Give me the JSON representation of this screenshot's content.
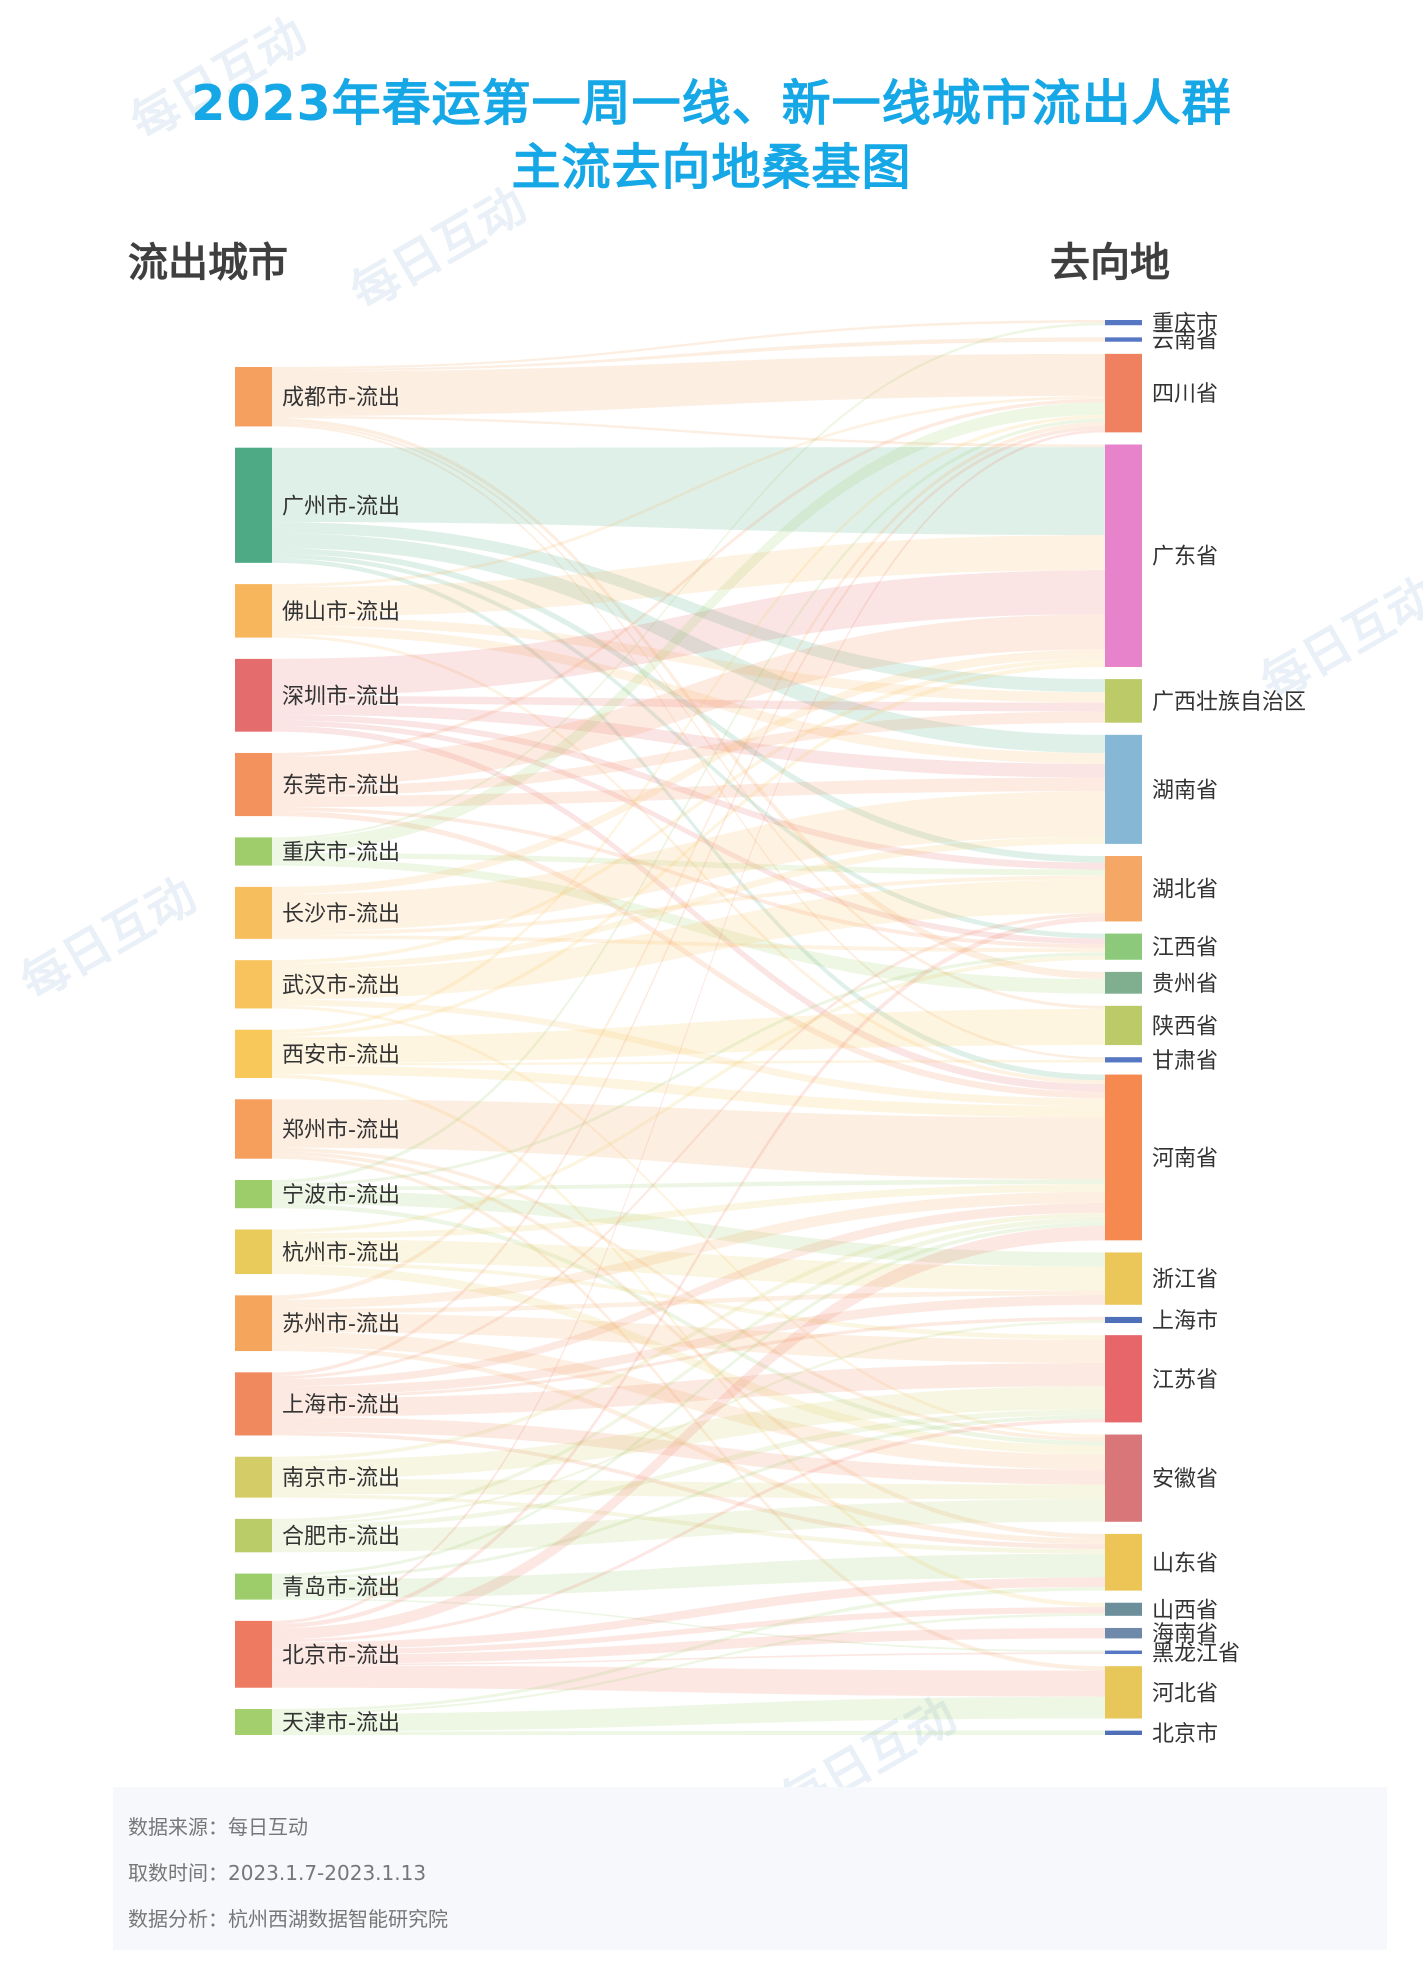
{
  "title_line1": "2023年春运第一周一线、新一线城市流出人群",
  "title_line2": "主流去向地桑基图",
  "left_header": "流出城市",
  "right_header": "去向地",
  "footer": {
    "source": "数据来源：每日互动",
    "period": "取数时间：2023.1.7-2023.1.13",
    "analysis": "数据分析：杭州西湖数据智能研究院"
  },
  "watermark_text": "每日互动",
  "chart_data": {
    "type": "sankey",
    "title": "2023年春运第一周一线、新一线城市流出人群主流去向地桑基图",
    "sources": [
      {
        "name": "成都市-流出",
        "value": 8.0,
        "color": "#f5a05f"
      },
      {
        "name": "广州市-流出",
        "value": 15.5,
        "color": "#4daa84"
      },
      {
        "name": "佛山市-流出",
        "value": 7.2,
        "color": "#f7b65c"
      },
      {
        "name": "深圳市-流出",
        "value": 9.8,
        "color": "#e56c6c"
      },
      {
        "name": "东莞市-流出",
        "value": 8.5,
        "color": "#f3925c"
      },
      {
        "name": "重庆市-流出",
        "value": 3.8,
        "color": "#a0cd6c"
      },
      {
        "name": "长沙市-流出",
        "value": 7.0,
        "color": "#f7be5e"
      },
      {
        "name": "武汉市-流出",
        "value": 6.5,
        "color": "#f8c25c"
      },
      {
        "name": "西安市-流出",
        "value": 6.5,
        "color": "#f9c85a"
      },
      {
        "name": "郑州市-流出",
        "value": 8.0,
        "color": "#f69e5c"
      },
      {
        "name": "宁波市-流出",
        "value": 3.8,
        "color": "#9ccd6a"
      },
      {
        "name": "杭州市-流出",
        "value": 6.0,
        "color": "#e9cb5c"
      },
      {
        "name": "苏州市-流出",
        "value": 7.5,
        "color": "#f6a65c"
      },
      {
        "name": "上海市-流出",
        "value": 8.5,
        "color": "#f1895f"
      },
      {
        "name": "南京市-流出",
        "value": 5.5,
        "color": "#d4cc66"
      },
      {
        "name": "合肥市-流出",
        "value": 4.5,
        "color": "#b9cc68"
      },
      {
        "name": "青岛市-流出",
        "value": 3.5,
        "color": "#9ccd6a"
      },
      {
        "name": "北京市-流出",
        "value": 9.0,
        "color": "#ee7a62"
      },
      {
        "name": "天津市-流出",
        "value": 3.5,
        "color": "#a3d06c"
      }
    ],
    "targets": [
      {
        "name": "重庆市",
        "value": 0.6,
        "color": "#5677c4"
      },
      {
        "name": "云南省",
        "value": 0.5,
        "color": "#5677c4"
      },
      {
        "name": "四川省",
        "value": 9.0,
        "color": "#ef8060"
      },
      {
        "name": "广东省",
        "value": 25.5,
        "color": "#e683cb"
      },
      {
        "name": "广西壮族自治区",
        "value": 5.0,
        "color": "#bcca68"
      },
      {
        "name": "湖南省",
        "value": 12.5,
        "color": "#86b7d4"
      },
      {
        "name": "湖北省",
        "value": 7.5,
        "color": "#f5a866"
      },
      {
        "name": "江西省",
        "value": 3.0,
        "color": "#8cc97a"
      },
      {
        "name": "贵州省",
        "value": 2.5,
        "color": "#7faf8f"
      },
      {
        "name": "陕西省",
        "value": 4.5,
        "color": "#bcca68"
      },
      {
        "name": "甘肃省",
        "value": 0.6,
        "color": "#5677c4"
      },
      {
        "name": "河南省",
        "value": 19.0,
        "color": "#f6894f"
      },
      {
        "name": "浙江省",
        "value": 6.0,
        "color": "#eac758"
      },
      {
        "name": "上海市",
        "value": 0.7,
        "color": "#4f6fb8"
      },
      {
        "name": "江苏省",
        "value": 10.0,
        "color": "#e6666a"
      },
      {
        "name": "安徽省",
        "value": 10.0,
        "color": "#d8767a"
      },
      {
        "name": "山东省",
        "value": 6.5,
        "color": "#edc456"
      },
      {
        "name": "山西省",
        "value": 1.5,
        "color": "#6d8f9c"
      },
      {
        "name": "海南省",
        "value": 1.2,
        "color": "#6e89aa"
      },
      {
        "name": "黑龙江省",
        "value": 0.4,
        "color": "#5677c4"
      },
      {
        "name": "河北省",
        "value": 6.0,
        "color": "#e7c75a"
      },
      {
        "name": "北京市",
        "value": 0.5,
        "color": "#4f6fb8"
      }
    ],
    "links": [
      {
        "source": "成都市-流出",
        "target": "重庆市",
        "value": 0.3
      },
      {
        "source": "成都市-流出",
        "target": "云南省",
        "value": 0.3
      },
      {
        "source": "成都市-流出",
        "target": "四川省",
        "value": 6.0
      },
      {
        "source": "成都市-流出",
        "target": "广东省",
        "value": 0.3
      },
      {
        "source": "成都市-流出",
        "target": "贵州省",
        "value": 0.5
      },
      {
        "source": "成都市-流出",
        "target": "陕西省",
        "value": 0.3
      },
      {
        "source": "成都市-流出",
        "target": "甘肃省",
        "value": 0.3
      },
      {
        "source": "广州市-流出",
        "target": "广东省",
        "value": 10.0
      },
      {
        "source": "广州市-流出",
        "target": "广西壮族自治区",
        "value": 1.5
      },
      {
        "source": "广州市-流出",
        "target": "湖南省",
        "value": 2.0
      },
      {
        "source": "广州市-流出",
        "target": "湖北省",
        "value": 0.8
      },
      {
        "source": "广州市-流出",
        "target": "江西省",
        "value": 0.6
      },
      {
        "source": "广州市-流出",
        "target": "河南省",
        "value": 0.6
      },
      {
        "source": "佛山市-流出",
        "target": "广东省",
        "value": 4.0
      },
      {
        "source": "佛山市-流出",
        "target": "广西壮族自治区",
        "value": 1.2
      },
      {
        "source": "佛山市-流出",
        "target": "湖南省",
        "value": 1.2
      },
      {
        "source": "佛山市-流出",
        "target": "四川省",
        "value": 0.4
      },
      {
        "source": "佛山市-流出",
        "target": "河南省",
        "value": 0.4
      },
      {
        "source": "深圳市-流出",
        "target": "广东省",
        "value": 5.0
      },
      {
        "source": "深圳市-流出",
        "target": "广西壮族自治区",
        "value": 1.0
      },
      {
        "source": "深圳市-流出",
        "target": "湖南省",
        "value": 1.5
      },
      {
        "source": "深圳市-流出",
        "target": "湖北省",
        "value": 0.8
      },
      {
        "source": "深圳市-流出",
        "target": "江西省",
        "value": 0.7
      },
      {
        "source": "深圳市-流出",
        "target": "河南省",
        "value": 0.8
      },
      {
        "source": "东莞市-流出",
        "target": "广东省",
        "value": 4.0
      },
      {
        "source": "东莞市-流出",
        "target": "广西壮族自治区",
        "value": 1.3
      },
      {
        "source": "东莞市-流出",
        "target": "湖南省",
        "value": 1.5
      },
      {
        "source": "东莞市-流出",
        "target": "四川省",
        "value": 0.5
      },
      {
        "source": "东莞市-流出",
        "target": "江西省",
        "value": 0.5
      },
      {
        "source": "东莞市-流出",
        "target": "河南省",
        "value": 0.7
      },
      {
        "source": "重庆市-流出",
        "target": "四川省",
        "value": 1.8
      },
      {
        "source": "重庆市-流出",
        "target": "重庆市",
        "value": 0.3
      },
      {
        "source": "重庆市-流出",
        "target": "贵州省",
        "value": 1.0
      },
      {
        "source": "重庆市-流出",
        "target": "湖北省",
        "value": 0.7
      },
      {
        "source": "长沙市-流出",
        "target": "湖南省",
        "value": 5.0
      },
      {
        "source": "长沙市-流出",
        "target": "广东省",
        "value": 1.0
      },
      {
        "source": "长沙市-流出",
        "target": "湖北省",
        "value": 0.5
      },
      {
        "source": "长沙市-流出",
        "target": "江西省",
        "value": 0.5
      },
      {
        "source": "武汉市-流出",
        "target": "湖北省",
        "value": 4.0
      },
      {
        "source": "武汉市-流出",
        "target": "河南省",
        "value": 0.8
      },
      {
        "source": "武汉市-流出",
        "target": "湖南省",
        "value": 0.8
      },
      {
        "source": "武汉市-流出",
        "target": "广东省",
        "value": 0.5
      },
      {
        "source": "武汉市-流出",
        "target": "安徽省",
        "value": 0.4
      },
      {
        "source": "西安市-流出",
        "target": "陕西省",
        "value": 3.5
      },
      {
        "source": "西安市-流出",
        "target": "河南省",
        "value": 1.2
      },
      {
        "source": "西安市-流出",
        "target": "甘肃省",
        "value": 0.3
      },
      {
        "source": "西安市-流出",
        "target": "四川省",
        "value": 0.5
      },
      {
        "source": "西安市-流出",
        "target": "山西省",
        "value": 0.5
      },
      {
        "source": "西安市-流出",
        "target": "广东省",
        "value": 0.5
      },
      {
        "source": "郑州市-流出",
        "target": "河南省",
        "value": 6.5
      },
      {
        "source": "郑州市-流出",
        "target": "河北省",
        "value": 0.5
      },
      {
        "source": "郑州市-流出",
        "target": "山东省",
        "value": 0.5
      },
      {
        "source": "郑州市-流出",
        "target": "安徽省",
        "value": 0.5
      },
      {
        "source": "宁波市-流出",
        "target": "浙江省",
        "value": 1.8
      },
      {
        "source": "宁波市-流出",
        "target": "安徽省",
        "value": 0.6
      },
      {
        "source": "宁波市-流出",
        "target": "江西省",
        "value": 0.4
      },
      {
        "source": "宁波市-流出",
        "target": "河南省",
        "value": 0.5
      },
      {
        "source": "宁波市-流出",
        "target": "四川省",
        "value": 0.5
      },
      {
        "source": "杭州市-流出",
        "target": "浙江省",
        "value": 3.0
      },
      {
        "source": "杭州市-流出",
        "target": "安徽省",
        "value": 1.2
      },
      {
        "source": "杭州市-流出",
        "target": "河南省",
        "value": 0.8
      },
      {
        "source": "杭州市-流出",
        "target": "江苏省",
        "value": 0.5
      },
      {
        "source": "杭州市-流出",
        "target": "江西省",
        "value": 0.5
      },
      {
        "source": "苏州市-流出",
        "target": "江苏省",
        "value": 2.5
      },
      {
        "source": "苏州市-流出",
        "target": "安徽省",
        "value": 2.0
      },
      {
        "source": "苏州市-流出",
        "target": "河南省",
        "value": 1.2
      },
      {
        "source": "苏州市-流出",
        "target": "浙江省",
        "value": 0.6
      },
      {
        "source": "苏州市-流出",
        "target": "四川省",
        "value": 0.6
      },
      {
        "source": "苏州市-流出",
        "target": "山东省",
        "value": 0.6
      },
      {
        "source": "上海市-流出",
        "target": "江苏省",
        "value": 2.5
      },
      {
        "source": "上海市-流出",
        "target": "安徽省",
        "value": 2.0
      },
      {
        "source": "上海市-流出",
        "target": "浙江省",
        "value": 1.2
      },
      {
        "source": "上海市-流出",
        "target": "河南省",
        "value": 1.0
      },
      {
        "source": "上海市-流出",
        "target": "上海市",
        "value": 0.4
      },
      {
        "source": "上海市-流出",
        "target": "四川省",
        "value": 0.5
      },
      {
        "source": "上海市-流出",
        "target": "湖北省",
        "value": 0.4
      },
      {
        "source": "上海市-流出",
        "target": "山东省",
        "value": 0.5
      },
      {
        "source": "南京市-流出",
        "target": "江苏省",
        "value": 2.5
      },
      {
        "source": "南京市-流出",
        "target": "安徽省",
        "value": 2.0
      },
      {
        "source": "南京市-流出",
        "target": "河南省",
        "value": 0.5
      },
      {
        "source": "南京市-流出",
        "target": "山东省",
        "value": 0.5
      },
      {
        "source": "合肥市-流出",
        "target": "安徽省",
        "value": 3.0
      },
      {
        "source": "合肥市-流出",
        "target": "江苏省",
        "value": 0.6
      },
      {
        "source": "合肥市-流出",
        "target": "河南省",
        "value": 0.5
      },
      {
        "source": "合肥市-流出",
        "target": "上海市",
        "value": 0.3
      },
      {
        "source": "青岛市-流出",
        "target": "山东省",
        "value": 2.5
      },
      {
        "source": "青岛市-流出",
        "target": "河南省",
        "value": 0.4
      },
      {
        "source": "青岛市-流出",
        "target": "黑龙江省",
        "value": 0.2
      },
      {
        "source": "青岛市-流出",
        "target": "江苏省",
        "value": 0.4
      },
      {
        "source": "北京市-流出",
        "target": "河北省",
        "value": 3.0
      },
      {
        "source": "北京市-流出",
        "target": "河南省",
        "value": 1.5
      },
      {
        "source": "北京市-流出",
        "target": "山东省",
        "value": 1.0
      },
      {
        "source": "北京市-流出",
        "target": "山西省",
        "value": 0.7
      },
      {
        "source": "北京市-流出",
        "target": "海南省",
        "value": 1.2
      },
      {
        "source": "北京市-流出",
        "target": "湖北省",
        "value": 0.6
      },
      {
        "source": "北京市-流出",
        "target": "黑龙江省",
        "value": 0.2
      },
      {
        "source": "北京市-流出",
        "target": "四川省",
        "value": 0.4
      },
      {
        "source": "北京市-流出",
        "target": "江苏省",
        "value": 0.4
      },
      {
        "source": "天津市-流出",
        "target": "河北省",
        "value": 2.5
      },
      {
        "source": "天津市-流出",
        "target": "山东省",
        "value": 0.4
      },
      {
        "source": "天津市-流出",
        "target": "北京市",
        "value": 0.5
      },
      {
        "source": "天津市-流出",
        "target": "山西省",
        "value": 0.3
      }
    ]
  }
}
